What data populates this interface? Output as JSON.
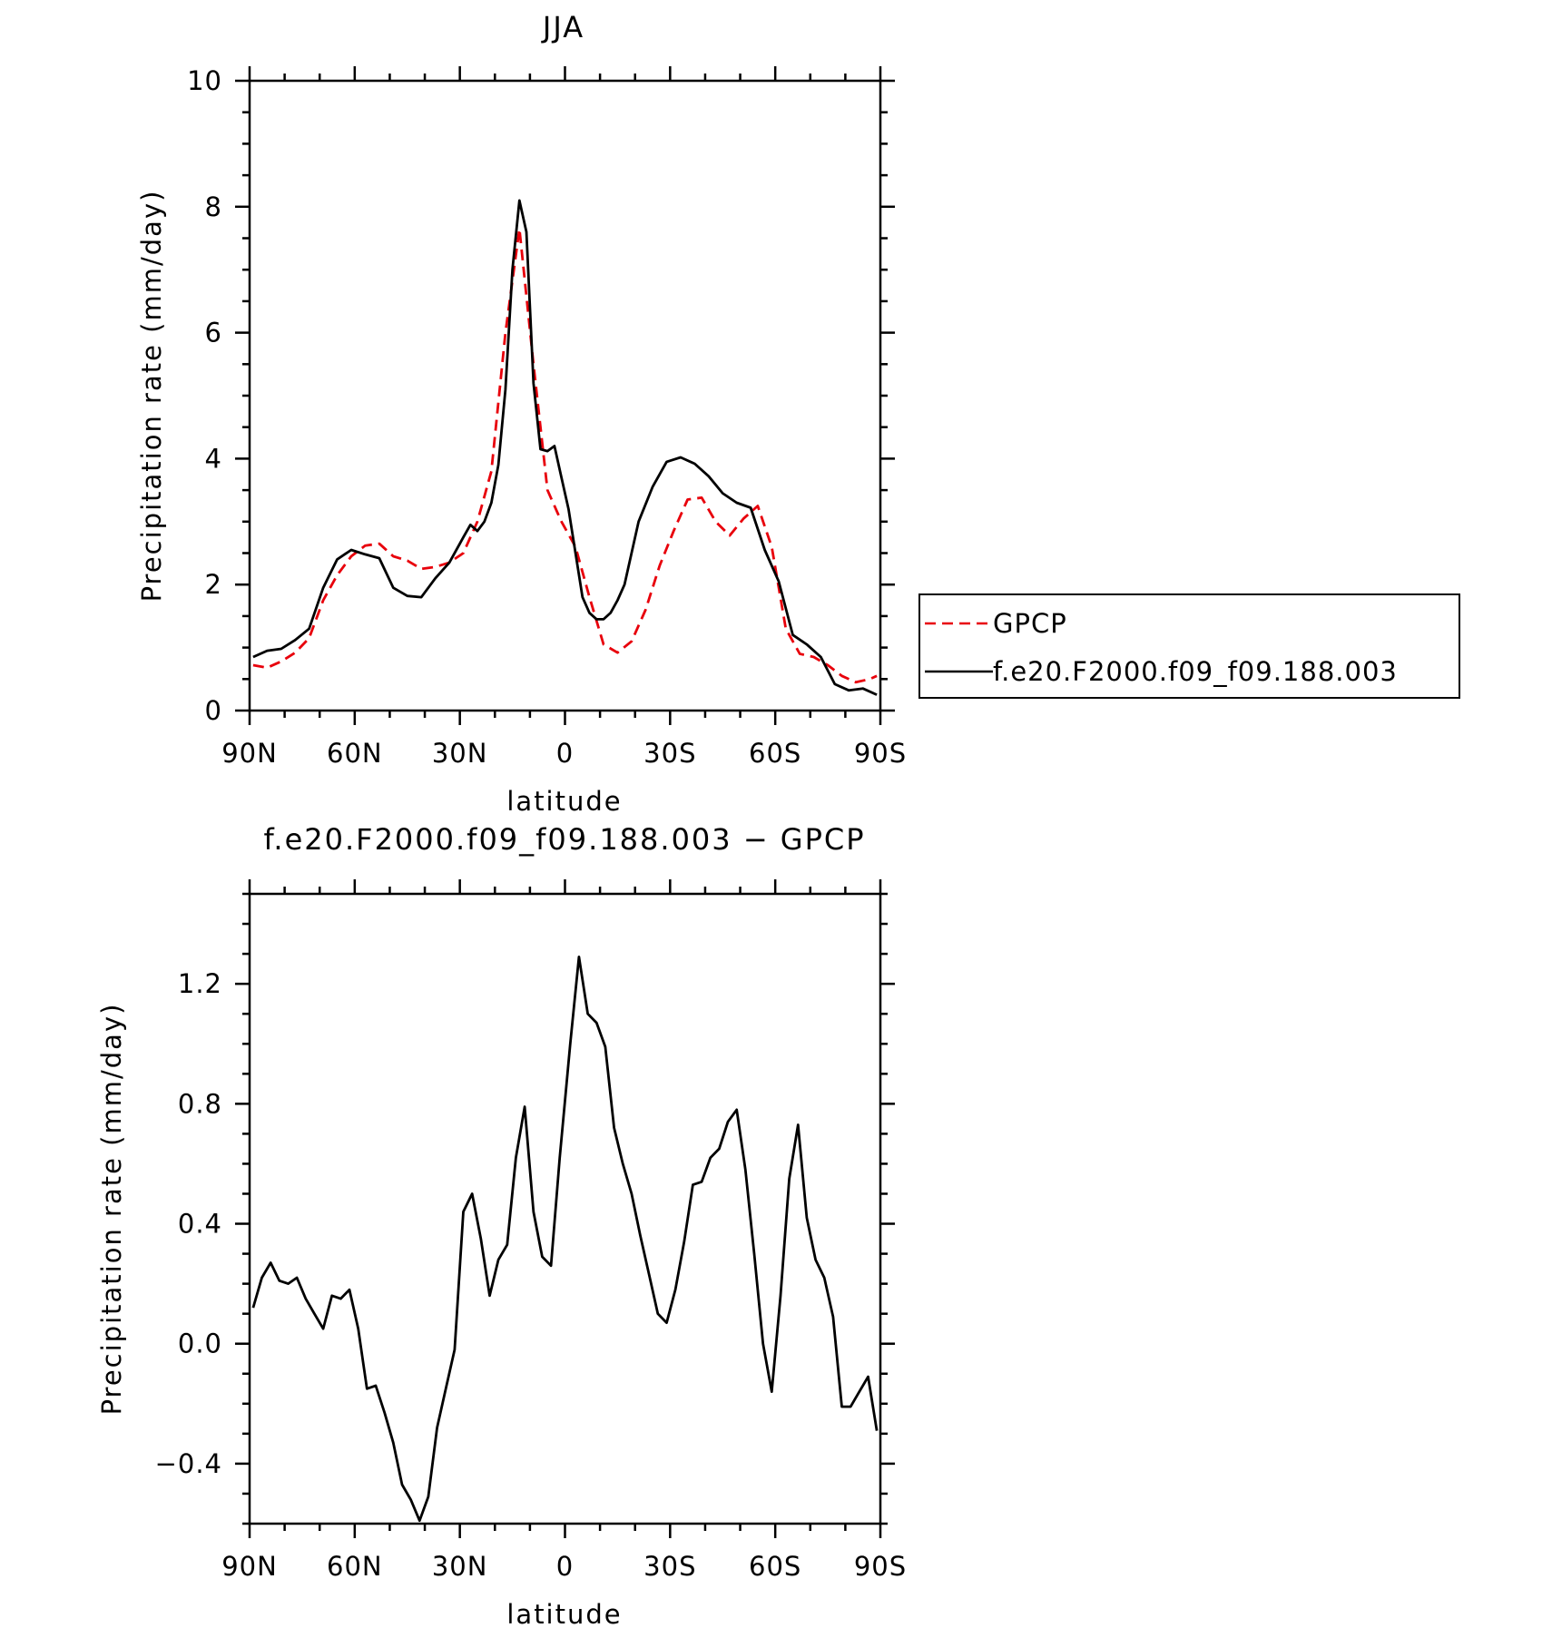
{
  "chart_data": [
    {
      "type": "line",
      "title": "JJA",
      "xlabel": "latitude",
      "ylabel": "Precipitation rate (mm/day)",
      "xlim": [
        90,
        -90
      ],
      "ylim": [
        0,
        10
      ],
      "x_ticks": [
        90,
        60,
        30,
        0,
        -30,
        -60,
        -90
      ],
      "x_tick_labels": [
        "90N",
        "60N",
        "30N",
        "0",
        "30S",
        "60S",
        "90S"
      ],
      "y_ticks": [
        0,
        2,
        4,
        6,
        8,
        10
      ],
      "y_tick_labels": [
        "0",
        "2",
        "4",
        "6",
        "8",
        "10"
      ],
      "legend_position": "right",
      "series": [
        {
          "name": "GPCP",
          "color": "#e8000b",
          "dash": "dashed",
          "x": [
            89,
            85,
            81,
            77,
            73,
            69,
            65,
            61,
            57,
            53,
            49,
            45,
            41,
            37,
            33,
            29,
            25,
            21,
            17,
            13,
            9,
            5,
            1,
            -3,
            -7,
            -11,
            -15,
            -19,
            -23,
            -27,
            -31,
            -35,
            -39,
            -43,
            -47,
            -51,
            -55,
            -59,
            -63,
            -67,
            -71,
            -75,
            -79,
            -83,
            -87,
            -89
          ],
          "y": [
            0.72,
            0.68,
            0.78,
            0.92,
            1.15,
            1.75,
            2.15,
            2.45,
            2.62,
            2.65,
            2.45,
            2.38,
            2.25,
            2.28,
            2.35,
            2.5,
            3.0,
            3.8,
            6.0,
            7.65,
            5.5,
            3.5,
            3.0,
            2.6,
            1.8,
            1.05,
            0.92,
            1.1,
            1.6,
            2.3,
            2.85,
            3.35,
            3.38,
            3.0,
            2.78,
            3.05,
            3.25,
            2.6,
            1.3,
            0.9,
            0.85,
            0.72,
            0.55,
            0.45,
            0.5,
            0.55
          ]
        },
        {
          "name": "f.e20.F2000.f09_f09.188.003",
          "color": "#000000",
          "dash": "solid",
          "x": [
            89,
            85,
            81,
            77,
            73,
            69,
            65,
            61,
            57,
            53,
            49,
            45,
            41,
            37,
            33,
            29,
            27,
            25,
            23,
            21,
            19,
            17,
            15,
            13,
            11,
            9,
            7,
            5,
            3,
            1,
            -1,
            -3,
            -5,
            -7,
            -9,
            -11,
            -13,
            -15,
            -17,
            -21,
            -25,
            -29,
            -33,
            -37,
            -41,
            -45,
            -49,
            -53,
            -57,
            -61,
            -65,
            -69,
            -73,
            -77,
            -81,
            -85,
            -89
          ],
          "y": [
            0.85,
            0.95,
            0.98,
            1.12,
            1.3,
            1.95,
            2.4,
            2.55,
            2.48,
            2.42,
            1.95,
            1.82,
            1.8,
            2.1,
            2.35,
            2.75,
            2.95,
            2.85,
            3.0,
            3.3,
            3.9,
            5.1,
            7.0,
            8.1,
            7.6,
            5.2,
            4.15,
            4.12,
            4.2,
            3.7,
            3.2,
            2.5,
            1.8,
            1.55,
            1.45,
            1.45,
            1.55,
            1.75,
            2.0,
            3.0,
            3.55,
            3.95,
            4.02,
            3.92,
            3.72,
            3.45,
            3.3,
            3.22,
            2.55,
            2.05,
            1.2,
            1.05,
            0.85,
            0.42,
            0.32,
            0.35,
            0.25
          ]
        }
      ]
    },
    {
      "type": "line",
      "title": "f.e20.F2000.f09_f09.188.003 − GPCP",
      "xlabel": "latitude",
      "ylabel": "Precipitation rate (mm/day)",
      "xlim": [
        90,
        -90
      ],
      "ylim": [
        -0.6,
        1.5
      ],
      "x_ticks": [
        90,
        60,
        30,
        0,
        -30,
        -60,
        -90
      ],
      "x_tick_labels": [
        "90N",
        "60N",
        "30N",
        "0",
        "30S",
        "60S",
        "90S"
      ],
      "y_ticks": [
        -0.4,
        0.0,
        0.4,
        0.8,
        1.2
      ],
      "y_tick_labels": [
        "−0.4",
        "0.0",
        "0.4",
        "0.8",
        "1.2"
      ],
      "series": [
        {
          "color": "#000000",
          "dash": "solid",
          "x": [
            89,
            86.5,
            84,
            81.5,
            79,
            76.5,
            74,
            71.5,
            69,
            66.5,
            64,
            61.5,
            59,
            56.5,
            54,
            51.5,
            49,
            46.5,
            44,
            41.5,
            39,
            36.5,
            34,
            31.5,
            29,
            26.5,
            24,
            21.5,
            19,
            16.5,
            14,
            11.5,
            9,
            6.5,
            4,
            1.5,
            -1.5,
            -4,
            -6.5,
            -9,
            -11.5,
            -14,
            -16.5,
            -19,
            -21.5,
            -24,
            -26.5,
            -29,
            -31.5,
            -34,
            -36.5,
            -39,
            -41.5,
            -44,
            -46.5,
            -49,
            -51.5,
            -54,
            -56.5,
            -59,
            -61.5,
            -64,
            -66.5,
            -69,
            -71.5,
            -74,
            -76.5,
            -79,
            -81.5,
            -84,
            -86.5,
            -89
          ],
          "y": [
            0.12,
            0.22,
            0.27,
            0.21,
            0.2,
            0.22,
            0.15,
            0.1,
            0.05,
            0.16,
            0.15,
            0.18,
            0.05,
            -0.15,
            -0.14,
            -0.23,
            -0.33,
            -0.47,
            -0.52,
            -0.59,
            -0.51,
            -0.28,
            -0.15,
            -0.02,
            0.44,
            0.5,
            0.35,
            0.16,
            0.28,
            0.33,
            0.62,
            0.79,
            0.44,
            0.29,
            0.26,
            0.62,
            1.0,
            1.29,
            1.1,
            1.07,
            0.99,
            0.72,
            0.6,
            0.5,
            0.36,
            0.23,
            0.1,
            0.07,
            0.18,
            0.34,
            0.53,
            0.54,
            0.62,
            0.65,
            0.74,
            0.78,
            0.58,
            0.3,
            0.0,
            -0.16,
            0.16,
            0.55,
            0.73,
            0.42,
            0.28,
            0.22,
            0.09,
            -0.21,
            -0.21,
            -0.16,
            -0.11,
            -0.29
          ]
        }
      ]
    }
  ],
  "legend": {
    "items": [
      {
        "label": "GPCP"
      },
      {
        "label": "f.e20.F2000.f09_f09.188.003"
      }
    ]
  },
  "colors": {
    "gpcp": "#e8000b",
    "model": "#000000",
    "frame": "#000000",
    "background": "#ffffff"
  }
}
